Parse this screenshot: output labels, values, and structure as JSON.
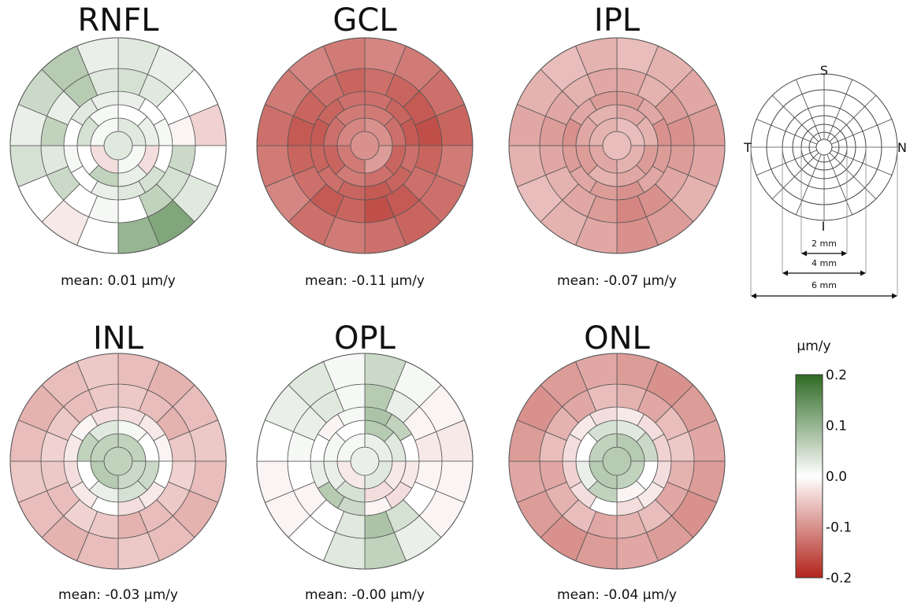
{
  "chart_data": [
    {
      "type": "heatmap",
      "title": "RNFL",
      "mean_label": "mean: 0.01 µm/y",
      "rings": [
        [
          0.03,
          0.01,
          -0.03,
          0.01
        ],
        [
          0.0,
          0.02,
          -0.03,
          0.02,
          0.06,
          0.0,
          0.04,
          0.01
        ],
        [
          0.02,
          0.0,
          0.01,
          0.0,
          0.04,
          0.03,
          0.02,
          0.0,
          0.01,
          0.0,
          0.03,
          0.02
        ],
        [
          0.04,
          0.03,
          0.0,
          -0.01,
          0.05,
          0.04,
          0.06,
          0.0,
          0.01,
          0.0,
          0.05,
          0.03,
          0.06,
          0.02,
          0.07,
          0.03
        ],
        [
          0.03,
          0.02,
          0.0,
          -0.04,
          0.0,
          0.03,
          0.12,
          0.1,
          0.0,
          -0.02,
          0.0,
          0.04,
          0.02,
          0.05,
          0.07,
          0.02
        ],
        [
          0.04,
          0.04,
          0.0,
          -0.03,
          -0.01,
          0.02,
          0.14,
          0.15,
          0.08,
          0.0,
          -0.03,
          0.03,
          0.05,
          0.12,
          0.16,
          0.06
        ]
      ]
    },
    {
      "type": "heatmap",
      "title": "GCL",
      "mean_label": "mean: -0.11 µm/y",
      "rings": [
        [
          -0.1,
          -0.09,
          -0.12,
          -0.11
        ],
        [
          -0.12,
          -0.13,
          -0.14,
          -0.13,
          -0.12,
          -0.14,
          -0.13,
          -0.12
        ],
        [
          -0.13,
          -0.14,
          -0.15,
          -0.13,
          -0.14,
          -0.15,
          -0.14,
          -0.13,
          -0.14,
          -0.15,
          -0.14,
          -0.13
        ],
        [
          -0.13,
          -0.14,
          -0.15,
          -0.16,
          -0.14,
          -0.13,
          -0.15,
          -0.16,
          -0.14,
          -0.15,
          -0.13,
          -0.14,
          -0.15,
          -0.14,
          -0.13,
          -0.14
        ],
        [
          -0.11,
          -0.12,
          -0.13,
          -0.14,
          -0.12,
          -0.13,
          -0.14,
          -0.13,
          -0.12,
          -0.13,
          -0.11,
          -0.12,
          -0.13,
          -0.12,
          -0.11,
          -0.12
        ],
        [
          -0.09,
          -0.1,
          -0.11,
          -0.12,
          -0.1,
          -0.11,
          -0.12,
          -0.11,
          -0.1,
          -0.11,
          -0.09,
          -0.1,
          -0.11,
          -0.1,
          -0.09,
          -0.1
        ]
      ]
    },
    {
      "type": "heatmap",
      "title": "IPL",
      "mean_label": "mean: -0.07 µm/y",
      "rings": [
        [
          -0.06,
          -0.07,
          -0.08,
          -0.07
        ],
        [
          -0.08,
          -0.07,
          -0.09,
          -0.08,
          -0.07,
          -0.09,
          -0.08,
          -0.07
        ],
        [
          -0.09,
          -0.08,
          -0.1,
          -0.09,
          -0.08,
          -0.1,
          -0.09,
          -0.08,
          -0.09,
          -0.1,
          -0.08,
          -0.09
        ],
        [
          -0.08,
          -0.07,
          -0.09,
          -0.1,
          -0.09,
          -0.08,
          -0.1,
          -0.11,
          -0.09,
          -0.08,
          -0.07,
          -0.08,
          -0.09,
          -0.08,
          -0.07,
          -0.08
        ],
        [
          -0.06,
          -0.07,
          -0.08,
          -0.09,
          -0.08,
          -0.07,
          -0.09,
          -0.1,
          -0.08,
          -0.07,
          -0.06,
          -0.07,
          -0.08,
          -0.07,
          -0.06,
          -0.07
        ],
        [
          -0.05,
          -0.06,
          -0.07,
          -0.08,
          -0.06,
          -0.07,
          -0.08,
          -0.07,
          -0.06,
          -0.05,
          -0.04,
          -0.05,
          -0.06,
          -0.05,
          -0.05,
          -0.06
        ]
      ]
    },
    {
      "type": "heatmap",
      "title": "INL",
      "mean_label": "mean: -0.03 µm/y",
      "rings": [
        [
          0.06,
          0.05,
          0.07,
          0.06
        ],
        [
          0.01,
          0.0,
          0.05,
          0.04,
          0.02,
          0.0,
          0.06,
          0.03
        ],
        [
          -0.03,
          -0.02,
          -0.01,
          0.0,
          -0.02,
          -0.03,
          0.0,
          -0.02,
          -0.03,
          -0.02,
          -0.01,
          -0.03
        ],
        [
          -0.05,
          -0.06,
          -0.07,
          -0.05,
          -0.04,
          -0.05,
          -0.06,
          -0.07,
          -0.05,
          -0.04,
          -0.06,
          -0.05,
          -0.04,
          -0.05,
          -0.06,
          -0.05
        ],
        [
          -0.06,
          -0.07,
          -0.06,
          -0.05,
          -0.06,
          -0.07,
          -0.06,
          -0.05,
          -0.06,
          -0.07,
          -0.06,
          -0.05,
          -0.06,
          -0.07,
          -0.06,
          -0.05
        ],
        [
          -0.06,
          -0.07,
          -0.06,
          -0.05,
          -0.06,
          -0.07,
          -0.06,
          -0.05,
          -0.06,
          -0.07,
          -0.06,
          -0.05,
          -0.06,
          -0.07,
          -0.06,
          -0.05
        ]
      ]
    },
    {
      "type": "heatmap",
      "title": "OPL",
      "mean_label": "mean: -0.00 µm/y",
      "rings": [
        [
          0.02,
          0.03,
          -0.02,
          0.01
        ],
        [
          0.07,
          0.03,
          -0.02,
          -0.03,
          0.04,
          0.02,
          0.01,
          0.0
        ],
        [
          0.08,
          0.06,
          0.0,
          -0.02,
          -0.03,
          -0.01,
          0.05,
          0.07,
          0.02,
          0.0,
          -0.01,
          0.01
        ],
        [
          0.07,
          0.02,
          -0.01,
          -0.02,
          -0.01,
          0.0,
          0.04,
          0.08,
          0.03,
          0.0,
          -0.01,
          0.0,
          0.01,
          0.02,
          0.03,
          0.01
        ],
        [
          0.05,
          0.01,
          -0.01,
          -0.02,
          -0.01,
          -0.01,
          0.02,
          0.06,
          0.03,
          0.0,
          -0.01,
          -0.01,
          0.0,
          0.02,
          0.03,
          0.01
        ],
        [
          0.01,
          0.0,
          -0.01,
          -0.02,
          -0.01,
          -0.01,
          0.0,
          0.03,
          0.02,
          0.0,
          -0.01,
          -0.01,
          0.0,
          0.01,
          0.02,
          0.0
        ]
      ]
    },
    {
      "type": "heatmap",
      "title": "ONL",
      "mean_label": "mean: -0.04 µm/y",
      "rings": [
        [
          0.07,
          0.06,
          0.07,
          0.06
        ],
        [
          0.03,
          0.05,
          0.0,
          -0.01,
          0.06,
          0.02,
          0.0,
          0.04
        ],
        [
          -0.02,
          -0.03,
          -0.04,
          -0.03,
          -0.02,
          -0.03,
          0.0,
          -0.03,
          -0.04,
          -0.03,
          -0.02,
          -0.03
        ],
        [
          -0.07,
          -0.08,
          -0.06,
          -0.05,
          -0.07,
          -0.08,
          -0.06,
          -0.07,
          -0.08,
          -0.06,
          -0.07,
          -0.08,
          -0.06,
          -0.07,
          -0.08,
          -0.06
        ],
        [
          -0.09,
          -0.1,
          -0.09,
          -0.08,
          -0.09,
          -0.1,
          -0.09,
          -0.08,
          -0.09,
          -0.1,
          -0.09,
          -0.08,
          -0.09,
          -0.1,
          -0.09,
          -0.08
        ],
        [
          -0.11,
          -0.12,
          -0.11,
          -0.1,
          -0.11,
          -0.12,
          -0.11,
          -0.1,
          -0.11,
          -0.12,
          -0.11,
          -0.1,
          -0.11,
          -0.12,
          -0.11,
          -0.1
        ]
      ]
    }
  ],
  "legend": {
    "unit": "µm/y",
    "ticks": [
      "0.2",
      "0.1",
      "0.0",
      "-0.1",
      "-0.2"
    ],
    "range": [
      -0.2,
      0.2
    ],
    "colors": {
      "max": "#2f6a24",
      "zero": "#ffffff",
      "min": "#b2231b"
    }
  },
  "schematic": {
    "labels": {
      "superior": "S",
      "inferior": "I",
      "temporal": "T",
      "nasal": "N"
    },
    "measures": [
      "2 mm",
      "4 mm",
      "6 mm"
    ]
  }
}
